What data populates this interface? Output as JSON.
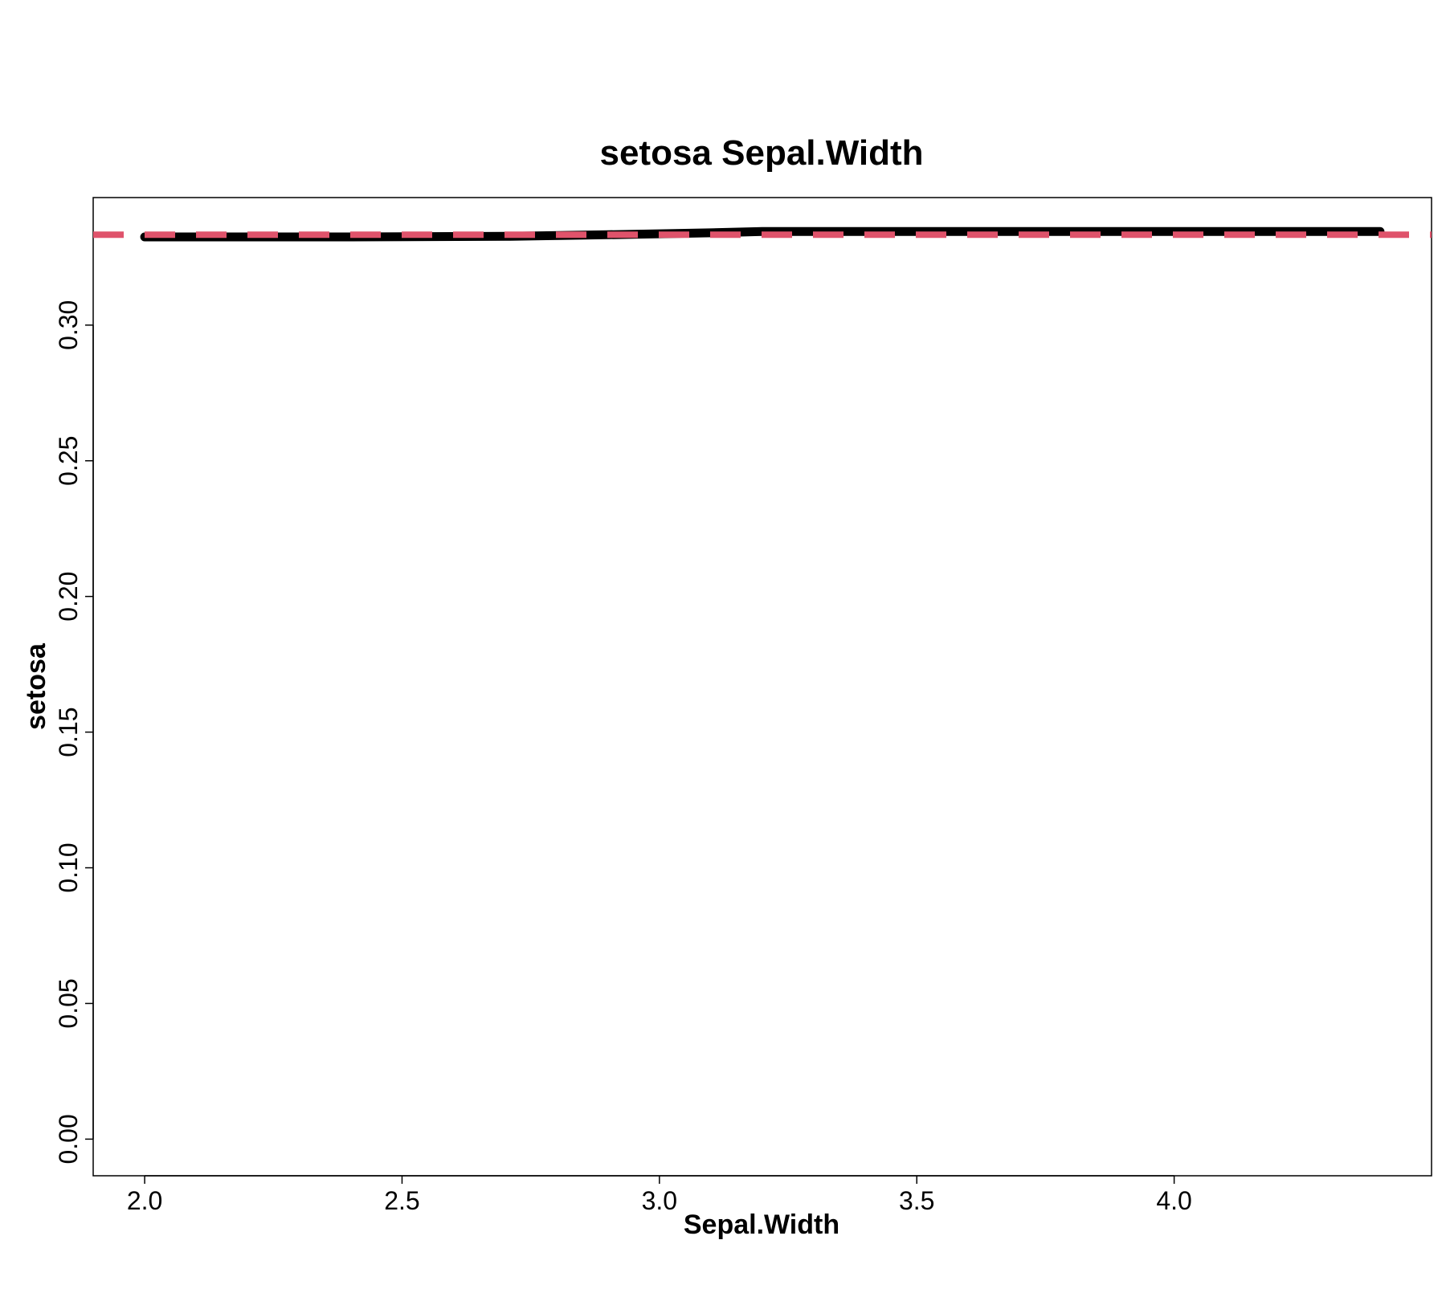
{
  "chart_data": {
    "type": "line",
    "title": "setosa  Sepal.Width",
    "xlabel": "Sepal.Width",
    "ylabel": "setosa",
    "xlim": [
      1.9,
      4.5
    ],
    "ylim": [
      -0.0135,
      0.347
    ],
    "x_ticks": [
      "2.0",
      "2.5",
      "3.0",
      "3.5",
      "4.0"
    ],
    "y_ticks": [
      "0.00",
      "0.05",
      "0.10",
      "0.15",
      "0.20",
      "0.25",
      "0.30"
    ],
    "grid": false,
    "series": [
      {
        "style": "solid",
        "color": "#000000",
        "x": [
          2.0,
          2.4,
          2.7,
          2.9,
          3.1,
          3.2,
          3.5,
          4.0,
          4.4
        ],
        "y": [
          0.3325,
          0.3325,
          0.3327,
          0.3333,
          0.334,
          0.3345,
          0.3345,
          0.3345,
          0.3345
        ]
      },
      {
        "style": "dashed",
        "color": "#DF536B",
        "x": [
          1.9,
          4.5
        ],
        "y": [
          0.3333,
          0.3333
        ]
      }
    ]
  }
}
